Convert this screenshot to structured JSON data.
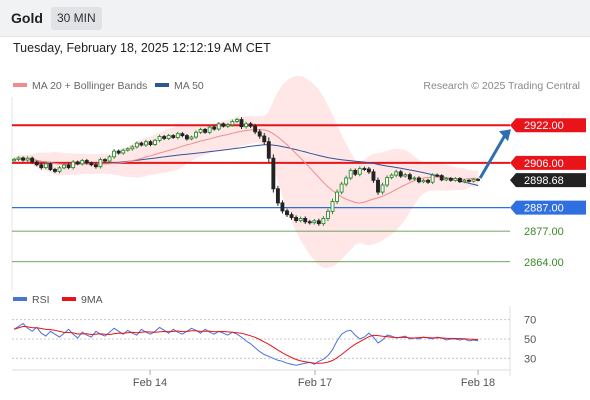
{
  "header": {
    "symbol": "Gold",
    "timeframe": "30 MIN"
  },
  "datetime": "Tuesday, February 18, 2025 12:12:19 AM CET",
  "legend": {
    "ma20_label": "MA 20 + Bollinger Bands",
    "ma50_label": "MA 50"
  },
  "copyright": "Research © 2025 Trading Central",
  "rsi_legend": {
    "rsi_label": "RSI",
    "ma_label": "9MA"
  },
  "colors": {
    "ma20": "#f28b8b",
    "ma50": "#2f5597",
    "band": "#ffe3e3",
    "up": "#2e8b2e",
    "down": "#222222",
    "resistance": "#e8141a",
    "pivot": "#2f6fe0",
    "support": "#3a8a2a",
    "rsi": "#4a73d8",
    "rsi_ma": "#e8141a",
    "arrow": "#2f6fb0"
  },
  "chart_data": [
    {
      "type": "candlestick",
      "title": "Gold",
      "timeframe": "30 MIN",
      "x_tick_labels": [
        "Feb 14",
        "Feb 17",
        "Feb 18"
      ],
      "price_ylim": [
        2852,
        2934
      ],
      "candle_closes": [
        2907.5,
        2908.1,
        2907.2,
        2908.0,
        2906.4,
        2905.2,
        2904.0,
        2905.6,
        2903.2,
        2902.4,
        2903.9,
        2905.1,
        2904.0,
        2906.4,
        2905.6,
        2907.0,
        2906.0,
        2905.2,
        2904.4,
        2907.4,
        2906.8,
        2908.6,
        2911.0,
        2910.2,
        2911.4,
        2912.0,
        2912.8,
        2914.4,
        2913.6,
        2915.0,
        2913.8,
        2915.6,
        2917.2,
        2916.4,
        2917.6,
        2916.8,
        2918.4,
        2917.6,
        2916.2,
        2917.0,
        2919.0,
        2920.2,
        2919.0,
        2921.2,
        2920.4,
        2922.6,
        2921.6,
        2922.2,
        2923.6,
        2924.4,
        2921.4,
        2922.6,
        2921.6,
        2919.2,
        2917.4,
        2915.0,
        2908.0,
        2895.0,
        2889.0,
        2885.6,
        2884.0,
        2882.8,
        2881.5,
        2882.4,
        2881.0,
        2880.6,
        2881.4,
        2880.2,
        2882.4,
        2885.4,
        2889.6,
        2893.6,
        2897.0,
        2899.6,
        2902.8,
        2901.2,
        2903.6,
        2903.4,
        2902.2,
        2898.6,
        2893.6,
        2896.6,
        2899.8,
        2900.8,
        2902.2,
        2900.4,
        2901.0,
        2899.2,
        2899.6,
        2898.0,
        2898.6,
        2897.8,
        2900.8,
        2900.6,
        2898.8,
        2899.4,
        2898.6,
        2899.4,
        2898.0,
        2898.6,
        2898.2,
        2899.0,
        2898.68
      ],
      "candle_amplitudes": [
        1.2,
        1.4,
        1.2,
        1.6,
        1.4,
        1.2,
        1.6,
        1.4,
        1.2,
        1.4,
        1.6,
        1.2,
        1.4,
        1.6,
        1.2,
        1.4,
        1.4,
        1.2,
        1.6,
        1.6,
        1.2,
        1.4,
        1.8,
        1.4,
        1.4,
        1.2,
        1.6,
        1.4,
        1.2,
        1.6,
        1.4,
        1.2,
        1.6,
        1.4,
        1.4,
        1.2,
        1.6,
        1.4,
        1.4,
        1.2,
        1.6,
        1.4,
        1.2,
        1.6,
        1.4,
        1.4,
        1.2,
        1.6,
        1.6,
        1.4,
        2.0,
        1.8,
        1.6,
        2.0,
        2.2,
        2.6,
        3.6,
        3.2,
        2.6,
        2.2,
        2.0,
        2.0,
        1.8,
        1.6,
        1.8,
        1.6,
        1.6,
        1.8,
        2.0,
        2.2,
        2.4,
        2.2,
        2.0,
        2.0,
        1.8,
        1.6,
        1.8,
        1.6,
        1.8,
        2.2,
        2.4,
        2.0,
        1.8,
        1.6,
        1.8,
        1.6,
        1.4,
        1.6,
        1.4,
        1.4,
        1.2,
        1.4,
        1.6,
        1.4,
        1.2,
        1.2,
        1.2,
        1.2,
        1.0,
        1.2,
        1.0,
        1.0,
        1.0
      ],
      "last_price": 2898.68,
      "levels": [
        {
          "name": "resistance-2",
          "value": 2922.0,
          "label": "2922.00",
          "kind": "resistance"
        },
        {
          "name": "resistance-1",
          "value": 2906.0,
          "label": "2906.00",
          "kind": "resistance"
        },
        {
          "name": "last-price",
          "value": 2898.68,
          "label": "2898.68",
          "kind": "last"
        },
        {
          "name": "pivot",
          "value": 2887.0,
          "label": "2887.00",
          "kind": "pivot"
        },
        {
          "name": "support-1",
          "value": 2877.0,
          "label": "2877.00",
          "kind": "support"
        },
        {
          "name": "support-2",
          "value": 2864.0,
          "label": "2864.00",
          "kind": "support"
        }
      ],
      "forecast_arrow": {
        "from": 2898.68,
        "to": 2922.0
      },
      "series": [
        {
          "name": "MA 20 + Bollinger Bands"
        },
        {
          "name": "MA 50"
        }
      ]
    },
    {
      "type": "line",
      "title": "RSI",
      "y_ticks": [
        70,
        50,
        30
      ],
      "ylim": [
        18,
        82
      ],
      "rsi_values": [
        60,
        63,
        66,
        61,
        58,
        62,
        56,
        53,
        58,
        55,
        52,
        56,
        60,
        55,
        51,
        57,
        54,
        52,
        58,
        55,
        53,
        57,
        61,
        58,
        55,
        59,
        56,
        54,
        60,
        57,
        55,
        58,
        62,
        59,
        56,
        60,
        57,
        55,
        58,
        61,
        59,
        56,
        60,
        57,
        55,
        58,
        56,
        54,
        57,
        55,
        52,
        48,
        45,
        41,
        37,
        34,
        32,
        30,
        28,
        27,
        25,
        24,
        23,
        24,
        25,
        26,
        24,
        27,
        29,
        33,
        39,
        48,
        55,
        58,
        59,
        54,
        50,
        52,
        56,
        52,
        46,
        49,
        54,
        53,
        51,
        52,
        53,
        50,
        51,
        50,
        52,
        51,
        50,
        52,
        51,
        49,
        50,
        50,
        49,
        50,
        48,
        49,
        48
      ],
      "series": [
        {
          "name": "RSI"
        },
        {
          "name": "9MA"
        }
      ]
    }
  ]
}
